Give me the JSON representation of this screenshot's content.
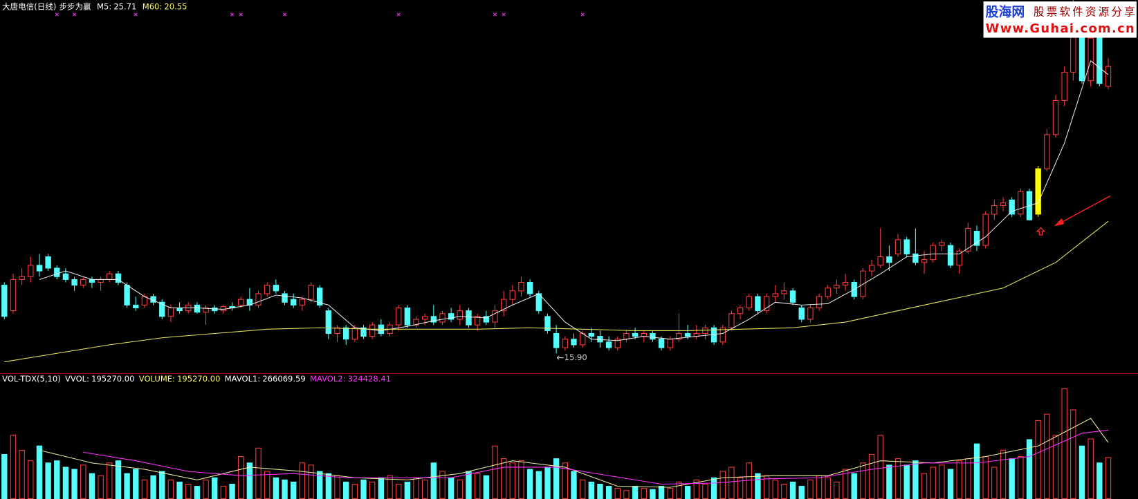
{
  "chart_data": {
    "type": "candlestick",
    "title": "大唐电信(日线)",
    "subtitle": "步步为赢",
    "ylim": [
      15.19,
      28.34
    ],
    "up_color": "#ff3c3c",
    "down_color": "#54fcfc",
    "highlight": 118,
    "highlight_color": "#ffff00",
    "indicators": [
      {
        "name": "M5:",
        "value": 25.71,
        "color": "#ffffff",
        "x": [
          4,
          7,
          10,
          13,
          16,
          19,
          22,
          25,
          28,
          31,
          34,
          37,
          40,
          43,
          46,
          49,
          52,
          55,
          58,
          61,
          64,
          67,
          70,
          73,
          76,
          79,
          82,
          85,
          88,
          91,
          94,
          97,
          100,
          103,
          106,
          109,
          112,
          115,
          118,
          121,
          124,
          126
        ],
        "values": [
          18.5,
          18.8,
          18.5,
          18.5,
          17.9,
          17.5,
          17.5,
          17.45,
          17.6,
          17.95,
          17.85,
          17.6,
          16.8,
          16.7,
          16.85,
          17.05,
          17.2,
          17.15,
          17.6,
          18.0,
          17.0,
          16.4,
          16.35,
          16.5,
          16.4,
          16.5,
          16.6,
          17.1,
          17.7,
          17.6,
          17.65,
          18.15,
          18.7,
          19.3,
          19.4,
          19.4,
          20.0,
          20.9,
          21.2,
          23.3,
          26.2,
          25.71
        ]
      },
      {
        "name": "M60:",
        "value": 20.55,
        "color": "#ffff66",
        "x": [
          0,
          6,
          12,
          18,
          24,
          30,
          36,
          42,
          48,
          54,
          60,
          66,
          72,
          78,
          84,
          90,
          96,
          102,
          108,
          114,
          120,
          126
        ],
        "values": [
          15.6,
          15.9,
          16.2,
          16.45,
          16.6,
          16.75,
          16.8,
          16.75,
          16.75,
          16.75,
          16.8,
          16.75,
          16.7,
          16.7,
          16.75,
          16.8,
          17.0,
          17.4,
          17.8,
          18.2,
          19.1,
          20.55
        ]
      }
    ],
    "signals": {
      "color": "#ff33ff",
      "x": [
        6,
        8,
        15,
        26,
        27,
        32,
        45,
        56,
        57,
        66
      ]
    },
    "annotation": {
      "x": 63,
      "value": 15.9,
      "label": "15.90"
    },
    "candles": [
      [
        18.3,
        18.4,
        17.1,
        17.2
      ],
      [
        17.4,
        18.7,
        17.3,
        18.5
      ],
      [
        18.5,
        18.9,
        18.3,
        18.6
      ],
      [
        18.6,
        19.3,
        18.4,
        19.0
      ],
      [
        19.0,
        19.4,
        18.6,
        18.8
      ],
      [
        19.3,
        19.4,
        18.8,
        18.9
      ],
      [
        18.9,
        19.0,
        18.5,
        18.6
      ],
      [
        18.7,
        18.9,
        18.4,
        18.5
      ],
      [
        18.5,
        18.6,
        18.1,
        18.3
      ],
      [
        18.3,
        18.6,
        18.2,
        18.5
      ],
      [
        18.5,
        18.6,
        18.2,
        18.4
      ],
      [
        18.4,
        18.6,
        18.1,
        18.5
      ],
      [
        18.5,
        18.8,
        18.4,
        18.7
      ],
      [
        18.7,
        18.8,
        18.3,
        18.4
      ],
      [
        18.3,
        18.4,
        17.5,
        17.6
      ],
      [
        17.6,
        17.9,
        17.4,
        17.5
      ],
      [
        17.6,
        18.0,
        17.5,
        17.9
      ],
      [
        17.9,
        18.0,
        17.6,
        17.7
      ],
      [
        17.7,
        17.8,
        17.1,
        17.2
      ],
      [
        17.2,
        17.6,
        17.0,
        17.5
      ],
      [
        17.5,
        17.7,
        17.3,
        17.4
      ],
      [
        17.4,
        17.7,
        17.3,
        17.6
      ],
      [
        17.6,
        17.7,
        17.3,
        17.35
      ],
      [
        17.35,
        17.6,
        16.9,
        17.5
      ],
      [
        17.5,
        17.6,
        17.3,
        17.4
      ],
      [
        17.4,
        17.6,
        17.3,
        17.55
      ],
      [
        17.55,
        17.7,
        17.4,
        17.5
      ],
      [
        17.6,
        17.9,
        17.5,
        17.8
      ],
      [
        17.8,
        18.2,
        17.4,
        17.6
      ],
      [
        17.6,
        18.1,
        17.5,
        18.0
      ],
      [
        18.0,
        18.4,
        17.9,
        18.3
      ],
      [
        18.3,
        18.5,
        18.0,
        18.1
      ],
      [
        18.0,
        18.1,
        17.6,
        17.7
      ],
      [
        17.8,
        18.0,
        17.5,
        17.6
      ],
      [
        17.6,
        17.9,
        17.4,
        17.8
      ],
      [
        17.8,
        18.4,
        17.7,
        18.3
      ],
      [
        18.2,
        18.3,
        17.5,
        17.6
      ],
      [
        17.4,
        17.5,
        16.4,
        16.6
      ],
      [
        16.6,
        16.9,
        16.3,
        16.8
      ],
      [
        16.8,
        16.9,
        16.2,
        16.4
      ],
      [
        16.4,
        16.9,
        16.3,
        16.8
      ],
      [
        16.8,
        16.9,
        16.4,
        16.5
      ],
      [
        16.5,
        17.0,
        16.4,
        16.9
      ],
      [
        16.9,
        17.1,
        16.5,
        16.6
      ],
      [
        16.6,
        17.0,
        16.5,
        16.9
      ],
      [
        16.9,
        17.6,
        16.7,
        17.5
      ],
      [
        17.5,
        17.6,
        16.8,
        16.9
      ],
      [
        16.9,
        17.2,
        16.8,
        17.1
      ],
      [
        17.1,
        17.3,
        16.9,
        17.2
      ],
      [
        17.2,
        17.6,
        16.9,
        17.0
      ],
      [
        17.0,
        17.4,
        16.9,
        17.3
      ],
      [
        17.3,
        17.5,
        17.0,
        17.1
      ],
      [
        17.1,
        17.6,
        16.9,
        17.4
      ],
      [
        17.4,
        17.5,
        16.8,
        16.9
      ],
      [
        16.9,
        17.3,
        16.7,
        17.2
      ],
      [
        17.2,
        17.4,
        16.9,
        17.0
      ],
      [
        17.0,
        17.6,
        16.8,
        17.4
      ],
      [
        17.4,
        18.1,
        17.2,
        17.8
      ],
      [
        17.8,
        18.3,
        17.6,
        18.1
      ],
      [
        18.1,
        18.6,
        17.9,
        18.4
      ],
      [
        18.4,
        18.5,
        17.9,
        18.0
      ],
      [
        18.0,
        18.1,
        17.3,
        17.4
      ],
      [
        17.2,
        17.3,
        16.6,
        16.7
      ],
      [
        16.6,
        16.9,
        15.9,
        16.1
      ],
      [
        16.1,
        16.5,
        16.0,
        16.4
      ],
      [
        16.4,
        16.6,
        16.1,
        16.2
      ],
      [
        16.2,
        16.7,
        16.1,
        16.6
      ],
      [
        16.6,
        16.8,
        16.3,
        16.5
      ],
      [
        16.5,
        16.7,
        16.1,
        16.3
      ],
      [
        16.3,
        16.5,
        16.0,
        16.1
      ],
      [
        16.1,
        16.5,
        16.0,
        16.4
      ],
      [
        16.4,
        16.7,
        16.3,
        16.6
      ],
      [
        16.6,
        16.8,
        16.4,
        16.5
      ],
      [
        16.5,
        16.7,
        16.3,
        16.6
      ],
      [
        16.6,
        16.7,
        16.3,
        16.4
      ],
      [
        16.4,
        16.5,
        16.0,
        16.1
      ],
      [
        16.1,
        16.5,
        16.0,
        16.4
      ],
      [
        16.4,
        17.3,
        16.3,
        16.6
      ],
      [
        16.6,
        16.9,
        16.4,
        16.5
      ],
      [
        16.5,
        16.9,
        16.4,
        16.6
      ],
      [
        16.6,
        16.9,
        16.4,
        16.8
      ],
      [
        16.8,
        16.9,
        16.2,
        16.3
      ],
      [
        16.3,
        16.9,
        16.2,
        16.8
      ],
      [
        16.8,
        17.4,
        16.7,
        17.3
      ],
      [
        17.3,
        17.6,
        17.1,
        17.5
      ],
      [
        17.5,
        18.0,
        17.4,
        17.9
      ],
      [
        17.9,
        18.0,
        17.3,
        17.4
      ],
      [
        17.4,
        18.0,
        17.3,
        17.9
      ],
      [
        17.9,
        18.3,
        17.7,
        18.0
      ],
      [
        18.0,
        18.4,
        17.8,
        18.1
      ],
      [
        18.1,
        18.2,
        17.6,
        17.7
      ],
      [
        17.5,
        17.6,
        17.0,
        17.1
      ],
      [
        17.1,
        17.6,
        17.0,
        17.5
      ],
      [
        17.5,
        18.0,
        17.4,
        17.9
      ],
      [
        17.9,
        18.3,
        17.8,
        18.2
      ],
      [
        18.2,
        18.5,
        18.0,
        18.3
      ],
      [
        18.3,
        18.7,
        18.1,
        18.4
      ],
      [
        18.4,
        18.5,
        17.8,
        17.9
      ],
      [
        17.9,
        18.9,
        17.8,
        18.8
      ],
      [
        18.8,
        19.2,
        18.6,
        19.0
      ],
      [
        19.0,
        20.3,
        18.9,
        19.3
      ],
      [
        19.3,
        19.7,
        18.8,
        19.1
      ],
      [
        19.4,
        20.1,
        19.3,
        19.9
      ],
      [
        19.9,
        20.0,
        19.3,
        19.4
      ],
      [
        19.4,
        20.3,
        19.0,
        19.1
      ],
      [
        19.1,
        19.5,
        18.7,
        19.2
      ],
      [
        19.2,
        19.8,
        19.1,
        19.7
      ],
      [
        19.7,
        19.9,
        19.5,
        19.8
      ],
      [
        19.7,
        19.8,
        18.9,
        19.0
      ],
      [
        19.0,
        19.6,
        18.7,
        19.5
      ],
      [
        19.5,
        20.5,
        19.4,
        20.3
      ],
      [
        20.2,
        20.4,
        19.5,
        19.7
      ],
      [
        19.7,
        20.9,
        19.6,
        20.8
      ],
      [
        20.8,
        21.3,
        20.6,
        21.1
      ],
      [
        21.1,
        21.4,
        20.9,
        21.2
      ],
      [
        21.3,
        21.4,
        20.7,
        20.8
      ],
      [
        20.8,
        21.7,
        20.7,
        21.6
      ],
      [
        21.6,
        21.7,
        20.6,
        20.6
      ],
      [
        20.8,
        22.5,
        20.7,
        22.4
      ],
      [
        22.4,
        23.8,
        22.3,
        23.6
      ],
      [
        23.6,
        25.0,
        23.5,
        24.8
      ],
      [
        24.8,
        26.0,
        24.6,
        25.8
      ],
      [
        25.8,
        28.5,
        25.5,
        27.5
      ],
      [
        27.5,
        27.8,
        25.4,
        25.5
      ],
      [
        25.5,
        27.6,
        25.3,
        27.0
      ],
      [
        27.0,
        27.5,
        25.3,
        25.4
      ],
      [
        25.3,
        26.3,
        25.2,
        26.0
      ]
    ],
    "volume": {
      "title": "VOL-TDX(5,10)",
      "ylim": [
        0,
        540000
      ],
      "indicators": [
        {
          "name": "VVOL:",
          "value": 195270,
          "value_label": "195270.00",
          "color": "#ffffff"
        },
        {
          "name": "VOLUME:",
          "value": 195270,
          "value_label": "195270.00",
          "color": "#ffff66"
        },
        {
          "name": "MAVOL1:",
          "value": 266069.59,
          "color": "#ffffff"
        },
        {
          "name": "MAVOL2:",
          "value": 324428.41,
          "color": "#ff33ff"
        }
      ],
      "lines": [
        {
          "color": "#f0f0a0",
          "x": [
            4,
            10,
            16,
            22,
            28,
            34,
            40,
            46,
            52,
            58,
            64,
            70,
            76,
            82,
            88,
            94,
            100,
            106,
            112,
            118,
            124,
            126
          ],
          "values": [
            230000,
            170000,
            140000,
            90000,
            150000,
            130000,
            100000,
            90000,
            120000,
            180000,
            150000,
            60000,
            55000,
            100000,
            110000,
            110000,
            180000,
            170000,
            200000,
            250000,
            380000,
            266069.59
          ]
        },
        {
          "color": "#ff33ff",
          "x": [
            9,
            15,
            21,
            27,
            33,
            39,
            45,
            51,
            57,
            63,
            69,
            75,
            81,
            87,
            93,
            99,
            105,
            111,
            117,
            123,
            126
          ],
          "values": [
            220000,
            180000,
            130000,
            110000,
            120000,
            100000,
            100000,
            100000,
            150000,
            150000,
            110000,
            70000,
            75000,
            95000,
            100000,
            140000,
            170000,
            170000,
            200000,
            310000,
            324428.41
          ]
        }
      ],
      "values": [
        210000,
        300000,
        230000,
        180000,
        250000,
        170000,
        180000,
        150000,
        140000,
        160000,
        120000,
        110000,
        170000,
        180000,
        120000,
        140000,
        90000,
        110000,
        130000,
        90000,
        80000,
        70000,
        60000,
        90000,
        100000,
        60000,
        70000,
        200000,
        170000,
        240000,
        130000,
        100000,
        90000,
        80000,
        170000,
        160000,
        130000,
        120000,
        110000,
        80000,
        70000,
        90000,
        80000,
        100000,
        110000,
        70000,
        80000,
        100000,
        90000,
        170000,
        130000,
        100000,
        90000,
        130000,
        120000,
        110000,
        250000,
        190000,
        170000,
        180000,
        140000,
        130000,
        150000,
        190000,
        170000,
        130000,
        90000,
        80000,
        70000,
        60000,
        50000,
        40000,
        60000,
        50000,
        45000,
        60000,
        50000,
        80000,
        60000,
        90000,
        70000,
        100000,
        130000,
        150000,
        100000,
        170000,
        120000,
        110000,
        90000,
        70000,
        80000,
        60000,
        90000,
        110000,
        100000,
        80000,
        140000,
        120000,
        170000,
        210000,
        300000,
        160000,
        190000,
        160000,
        180000,
        120000,
        150000,
        160000,
        140000,
        180000,
        190000,
        260000,
        200000,
        150000,
        230000,
        190000,
        200000,
        280000,
        370000,
        400000,
        300000,
        520000,
        420000,
        250000,
        283000,
        170000,
        195270
      ]
    },
    "watermark": {
      "name": "股海网",
      "slogan": "股票软件资源分享",
      "url": "Www.Guhai.com.cn"
    }
  }
}
